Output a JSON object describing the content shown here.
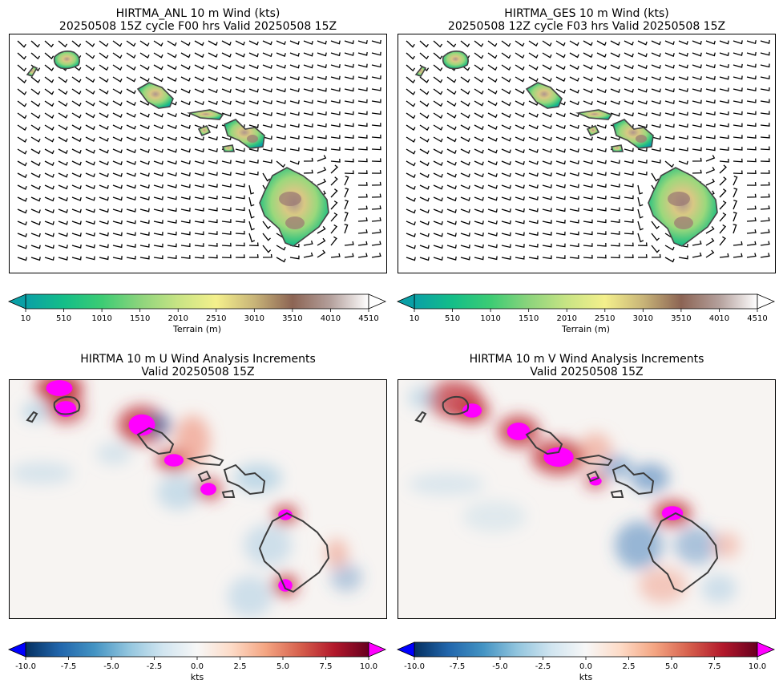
{
  "panels": [
    {
      "id": "anl",
      "title_line1": "HIRTMA_ANL 10 m Wind (kts)",
      "title_line2": "20250508 15Z cycle F00 hrs Valid 20250508 15Z"
    },
    {
      "id": "ges",
      "title_line1": "HIRTMA_GES 10 m Wind (kts)",
      "title_line2": "20250508 12Z cycle F03 hrs Valid 20250508 15Z"
    },
    {
      "id": "uinc",
      "title_line1": "HIRTMA 10 m U Wind Analysis Increments",
      "title_line2": "Valid 20250508 15Z"
    },
    {
      "id": "vinc",
      "title_line1": "HIRTMA 10 m V Wind Analysis Increments",
      "title_line2": "Valid 20250508 15Z"
    }
  ],
  "colorbars": {
    "terrain": {
      "label": "Terrain (m)",
      "ticks": [
        "10",
        "510",
        "1010",
        "1510",
        "2010",
        "2510",
        "3010",
        "3510",
        "4010",
        "4510"
      ],
      "range": [
        10,
        4510
      ],
      "colors": [
        "#0aa0a6",
        "#14be88",
        "#3ccc74",
        "#8cd47c",
        "#c8e484",
        "#f4f08c",
        "#c8b478",
        "#8c6454",
        "#b4a09c",
        "#ffffff"
      ]
    },
    "increment": {
      "label": "kts",
      "ticks": [
        "-10.0",
        "-7.5",
        "-5.0",
        "-2.5",
        "0.0",
        "2.5",
        "5.0",
        "7.5",
        "10.0"
      ],
      "range": [
        -10,
        10
      ],
      "colors": [
        "#053061",
        "#2166ac",
        "#4393c3",
        "#92c5de",
        "#d1e5f0",
        "#f7f7f7",
        "#fddbc7",
        "#f4a582",
        "#d6604d",
        "#b2182b",
        "#67001f"
      ],
      "under_color": "#0000ff",
      "over_color": "#ff00ff"
    }
  },
  "chart_data": [
    {
      "type": "heatmap",
      "panel": "anl",
      "field": "terrain_with_wind_barbs",
      "title": "HIRTMA_ANL 10 m Wind (kts)",
      "colorbar": "Terrain (m)",
      "range": [
        10,
        4510
      ]
    },
    {
      "type": "heatmap",
      "panel": "ges",
      "field": "terrain_with_wind_barbs",
      "title": "HIRTMA_GES 10 m Wind (kts)",
      "colorbar": "Terrain (m)",
      "range": [
        10,
        4510
      ]
    },
    {
      "type": "heatmap",
      "panel": "uinc",
      "field": "u_increment",
      "title": "HIRTMA 10 m U Wind Analysis Increments",
      "colorbar": "kts",
      "range": [
        -10,
        10
      ]
    },
    {
      "type": "heatmap",
      "panel": "vinc",
      "field": "v_increment",
      "title": "HIRTMA 10 m V Wind Analysis Increments",
      "colorbar": "kts",
      "range": [
        -10,
        10
      ]
    }
  ]
}
